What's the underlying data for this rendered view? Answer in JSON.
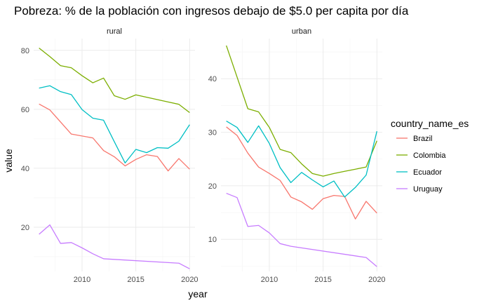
{
  "chart_data": {
    "type": "line",
    "title": "Pobreza: % de la población con ingresos debajo de $5.0 per capita por día",
    "xlabel": "year",
    "ylabel": "value",
    "legend_title": "country_name_es",
    "legend_position": "right",
    "grid": true,
    "xlim": [
      2005.5,
      2020.5
    ],
    "x_ticks": [
      2010,
      2015,
      2020
    ],
    "panels": [
      {
        "label": "rural",
        "ylim": [
          5,
          84
        ],
        "y_ticks": [
          20,
          40,
          60,
          80
        ],
        "series": [
          {
            "name": "Brazil",
            "x": [
              2006,
              2007,
              2008,
              2009,
              2011,
              2012,
              2013,
              2014,
              2015,
              2016,
              2017,
              2018,
              2019,
              2020
            ],
            "values": [
              61.8,
              59.8,
              55.7,
              51.6,
              50.3,
              46.0,
              43.9,
              40.8,
              43.0,
              44.6,
              44.0,
              39.1,
              43.3,
              39.7
            ]
          },
          {
            "name": "Colombia",
            "x": [
              2006,
              2007,
              2008,
              2009,
              2010,
              2011,
              2012,
              2013,
              2014,
              2015,
              2016,
              2017,
              2018,
              2019,
              2020
            ],
            "values": [
              80.8,
              77.9,
              74.8,
              74.1,
              71.4,
              69.0,
              70.6,
              64.6,
              63.4,
              64.9,
              64.1,
              63.3,
              62.5,
              61.7,
              58.9
            ]
          },
          {
            "name": "Ecuador",
            "x": [
              2006,
              2007,
              2008,
              2009,
              2010,
              2011,
              2012,
              2013,
              2014,
              2015,
              2016,
              2017,
              2018,
              2019,
              2020
            ],
            "values": [
              67.2,
              68.0,
              66.0,
              65.0,
              59.9,
              57.0,
              56.3,
              49.0,
              41.8,
              46.4,
              45.3,
              47.0,
              46.8,
              49.2,
              54.8
            ]
          },
          {
            "name": "Uruguay",
            "x": [
              2006,
              2007,
              2008,
              2009,
              2010,
              2011,
              2012,
              2019,
              2020
            ],
            "values": [
              17.6,
              20.8,
              14.5,
              14.8,
              13.0,
              11.0,
              9.3,
              7.8,
              5.9
            ]
          }
        ]
      },
      {
        "label": "urban",
        "ylim": [
          4,
          47.5
        ],
        "y_ticks": [
          10,
          20,
          30,
          40
        ],
        "series": [
          {
            "name": "Brazil",
            "x": [
              2006,
              2007,
              2008,
              2009,
              2010,
              2011,
              2012,
              2013,
              2014,
              2015,
              2016,
              2017,
              2018,
              2019,
              2020
            ],
            "values": [
              31.0,
              29.4,
              26.1,
              23.5,
              22.3,
              21.0,
              17.9,
              17.0,
              15.6,
              17.6,
              18.2,
              18.0,
              13.8,
              17.1,
              14.9
            ]
          },
          {
            "name": "Colombia",
            "x": [
              2006,
              2007,
              2008,
              2009,
              2010,
              2011,
              2012,
              2013,
              2014,
              2015,
              2016,
              2017,
              2018,
              2019,
              2020
            ],
            "values": [
              46.2,
              40.3,
              34.4,
              33.8,
              30.9,
              26.8,
              26.2,
              24.1,
              22.3,
              21.8,
              22.3,
              22.7,
              23.1,
              23.5,
              28.4
            ]
          },
          {
            "name": "Ecuador",
            "x": [
              2006,
              2007,
              2008,
              2009,
              2010,
              2011,
              2012,
              2013,
              2014,
              2015,
              2016,
              2017,
              2018,
              2019,
              2020
            ],
            "values": [
              32.1,
              30.9,
              28.1,
              31.2,
              27.9,
              23.4,
              20.6,
              22.5,
              21.1,
              19.8,
              20.9,
              17.9,
              19.7,
              22.0,
              30.2
            ]
          },
          {
            "name": "Uruguay",
            "x": [
              2006,
              2007,
              2008,
              2009,
              2010,
              2011,
              2012,
              2019,
              2020
            ],
            "values": [
              18.6,
              17.8,
              12.4,
              12.6,
              11.2,
              9.2,
              8.7,
              6.6,
              4.9
            ]
          }
        ]
      }
    ],
    "colors": {
      "Brazil": "#F8766D",
      "Colombia": "#7CAE00",
      "Ecuador": "#00BFC4",
      "Uruguay": "#C77CFF"
    }
  }
}
